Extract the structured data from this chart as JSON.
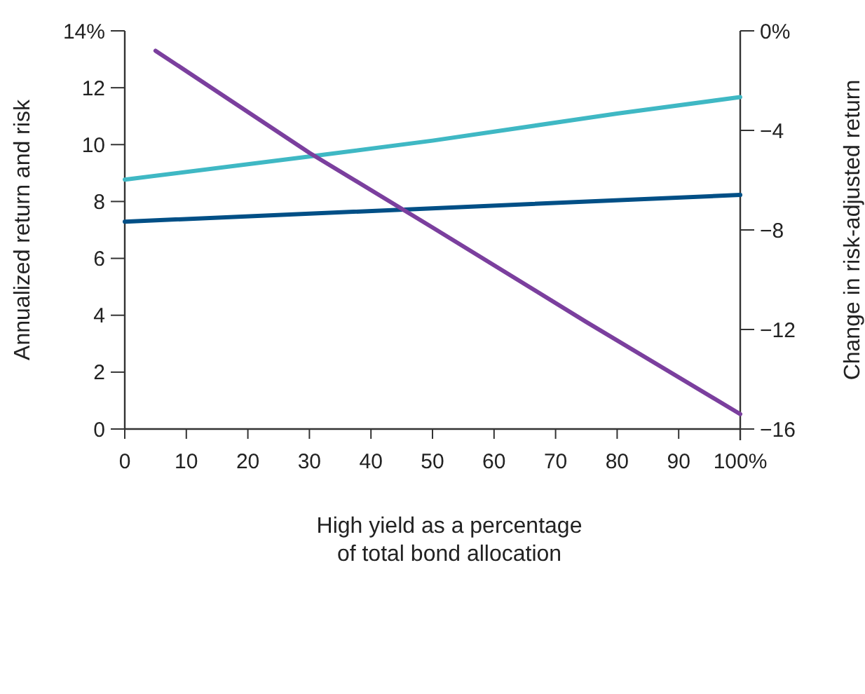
{
  "chart_data": {
    "type": "line",
    "xlabel": "High yield as a percentage\nof total bond allocation",
    "ylabel": "Annualized return and risk",
    "y2label": "Change in risk-adjusted return",
    "xlim": [
      0,
      100
    ],
    "xticks": [
      0,
      10,
      20,
      30,
      40,
      50,
      60,
      70,
      80,
      90,
      {
        "value": 100,
        "label": "100%"
      }
    ],
    "ylim": [
      0,
      14
    ],
    "yticks": [
      0,
      2,
      4,
      6,
      8,
      10,
      12,
      {
        "value": 14,
        "label": "14%"
      }
    ],
    "y2lim": [
      -16,
      0
    ],
    "y2ticks": [
      {
        "value": -16,
        "label": "−16"
      },
      {
        "value": -12,
        "label": "−12"
      },
      {
        "value": -8,
        "label": "−8"
      },
      {
        "value": -4,
        "label": "−4"
      },
      {
        "value": 0,
        "label": "0%"
      }
    ],
    "grid": false,
    "marker": "none",
    "line_style": "solid",
    "series": [
      {
        "color": "#3fb8c4",
        "x": [
          0,
          30,
          50,
          80,
          100
        ],
        "values": [
          8.77,
          9.58,
          10.14,
          11.09,
          11.67
        ]
      },
      {
        "color": "#004f86",
        "x": [
          0,
          100
        ],
        "values": [
          7.29,
          8.23
        ]
      },
      {
        "color": "#7b3f9e",
        "axis": "y2",
        "x": [
          5,
          30,
          50,
          75,
          100
        ],
        "values": [
          -0.8,
          -4.9,
          -7.9,
          -11.7,
          -15.4
        ]
      }
    ]
  }
}
